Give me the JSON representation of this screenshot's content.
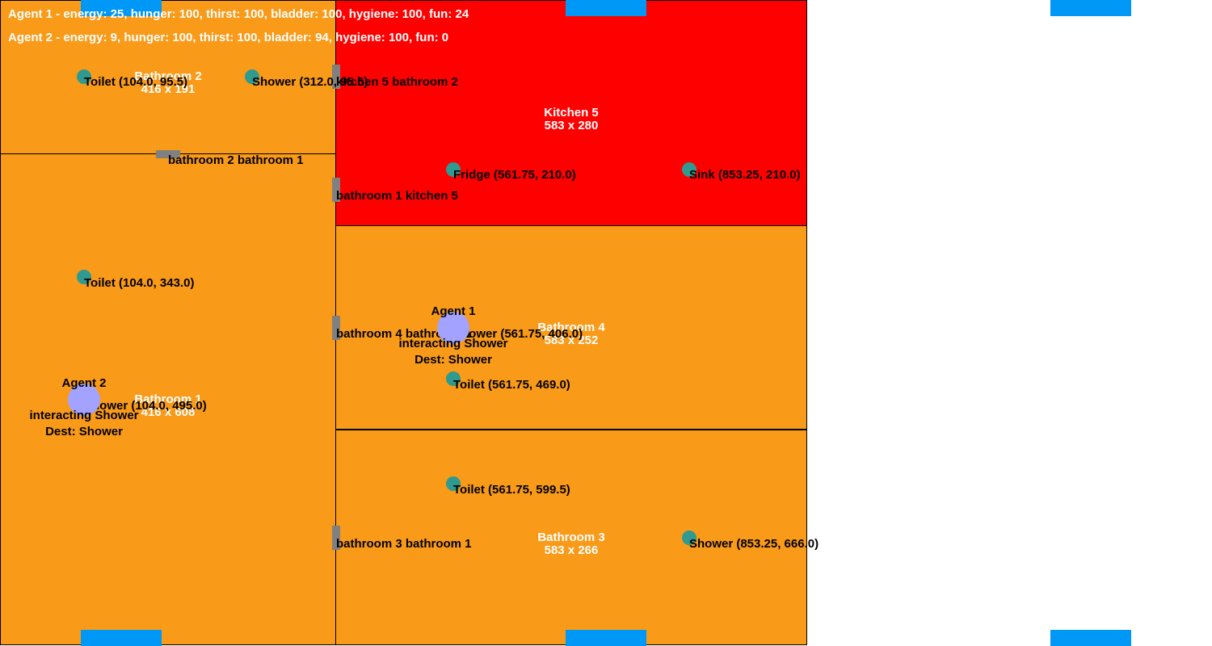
{
  "status": {
    "agent1": "Agent 1 - energy: 25, hunger: 100, thirst: 100, bladder: 100, hygiene: 100, fun: 24",
    "agent2": "Agent 2 - energy: 9, hunger: 100, thirst: 100, bladder: 94, hygiene: 100, fun: 0"
  },
  "colors": {
    "bathroom": "#f99a18",
    "kitchen": "#fe0000",
    "spawn": "#0098f7",
    "object": "#2f9a8f",
    "agent": "#a3a3ff",
    "door": "#808080"
  },
  "rooms": {
    "bathroom2": {
      "name": "Bathroom 2",
      "size": "416 x 191"
    },
    "bathroom1": {
      "name": "Bathroom 1",
      "size": "416 x 608"
    },
    "kitchen5": {
      "name": "Kitchen 5",
      "size": "583 x 280"
    },
    "bathroom4": {
      "name": "Bathroom 4",
      "size": "583 x 252"
    },
    "bathroom3": {
      "name": "Bathroom 3",
      "size": "583 x 266"
    }
  },
  "doors": {
    "kitchen5_bathroom2": "kitchen 5 bathroom 2",
    "bathroom2_bathroom1": "bathroom 2 bathroom 1",
    "bathroom1_kitchen5": "bathroom 1 kitchen 5",
    "bathroom4_bathroom1": "bathroom 4 bathroom 1",
    "bathroom3_bathroom1": "bathroom 3 bathroom 1"
  },
  "objects": {
    "toilet_b2": "Toilet (104.0, 95.5)",
    "shower_b2": "Shower (312.0, 95.5)",
    "fridge_k5": "Fridge (561.75, 210.0)",
    "sink_k5": "Sink (853.25, 210.0)",
    "toilet_b1": "Toilet (104.0, 343.0)",
    "shower_b1": "Shower (104.0, 495.0)",
    "shower_b4": "Shower (561.75, 406.0)",
    "toilet_b4": "Toilet (561.75, 469.0)",
    "toilet_b3a": "Toilet (561.75, 599.5)",
    "shower_b3": "Shower (853.25, 666.0)"
  },
  "agents": {
    "agent1": {
      "name": "Agent 1",
      "action": "interacting Shower",
      "dest": "Dest: Shower"
    },
    "agent2": {
      "name": "Agent 2",
      "action": "interacting Shower",
      "dest": "Dest: Shower"
    }
  }
}
